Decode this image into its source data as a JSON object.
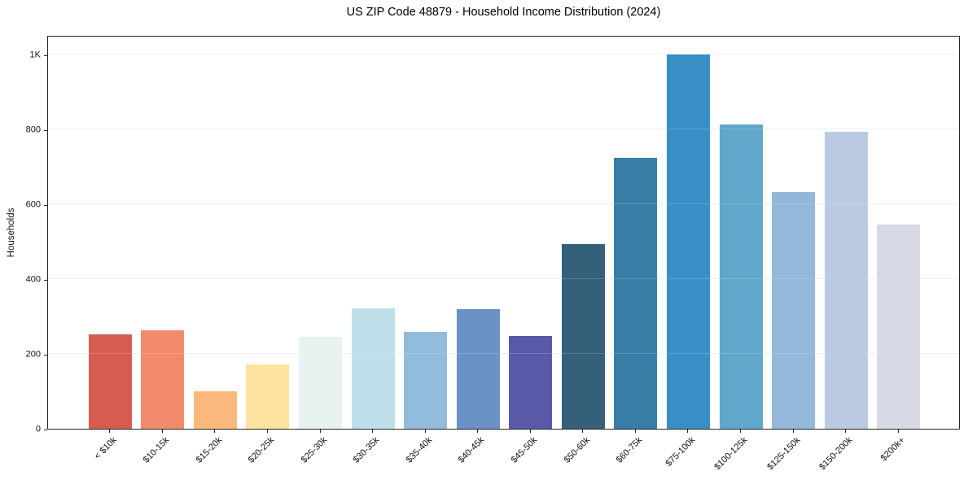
{
  "chart_data": {
    "type": "bar",
    "title": "US ZIP Code 48879 - Household Income Distribution (2024)",
    "xlabel": "",
    "ylabel": "Households",
    "categories": [
      "< $10k",
      "$10-15k",
      "$15-20k",
      "$20-25k",
      "$25-30k",
      "$30-35k",
      "$35-40k",
      "$40-45k",
      "$45-50k",
      "$50-60k",
      "$60-75k",
      "$75-100k",
      "$100-125k",
      "$125-150k",
      "$150-200k",
      "$200k+"
    ],
    "values": [
      252,
      263,
      100,
      172,
      245,
      323,
      258,
      319,
      249,
      493,
      724,
      1000,
      813,
      634,
      795,
      547
    ],
    "bar_colors": [
      "#d65c52",
      "#f28a6c",
      "#fab87c",
      "#fde2a0",
      "#e7f2f1",
      "#bedfe9",
      "#92bcdb",
      "#6a92c6",
      "#5a58a8",
      "#35607a",
      "#377ea7",
      "#3a8ec6",
      "#60a7cb",
      "#93b8d9",
      "#b9cae2",
      "#d8d9e6"
    ],
    "ytick_labels": [
      "0",
      "200",
      "400",
      "600",
      "800",
      "1K"
    ],
    "ytick_values": [
      0,
      200,
      400,
      600,
      800,
      1000
    ],
    "ylim": [
      0,
      1053
    ],
    "grid": "horizontal",
    "legend": "none"
  },
  "colors": {
    "background": "#ffffff",
    "spine": "#262626",
    "grid": "#ebebf2",
    "text": "#111111"
  }
}
